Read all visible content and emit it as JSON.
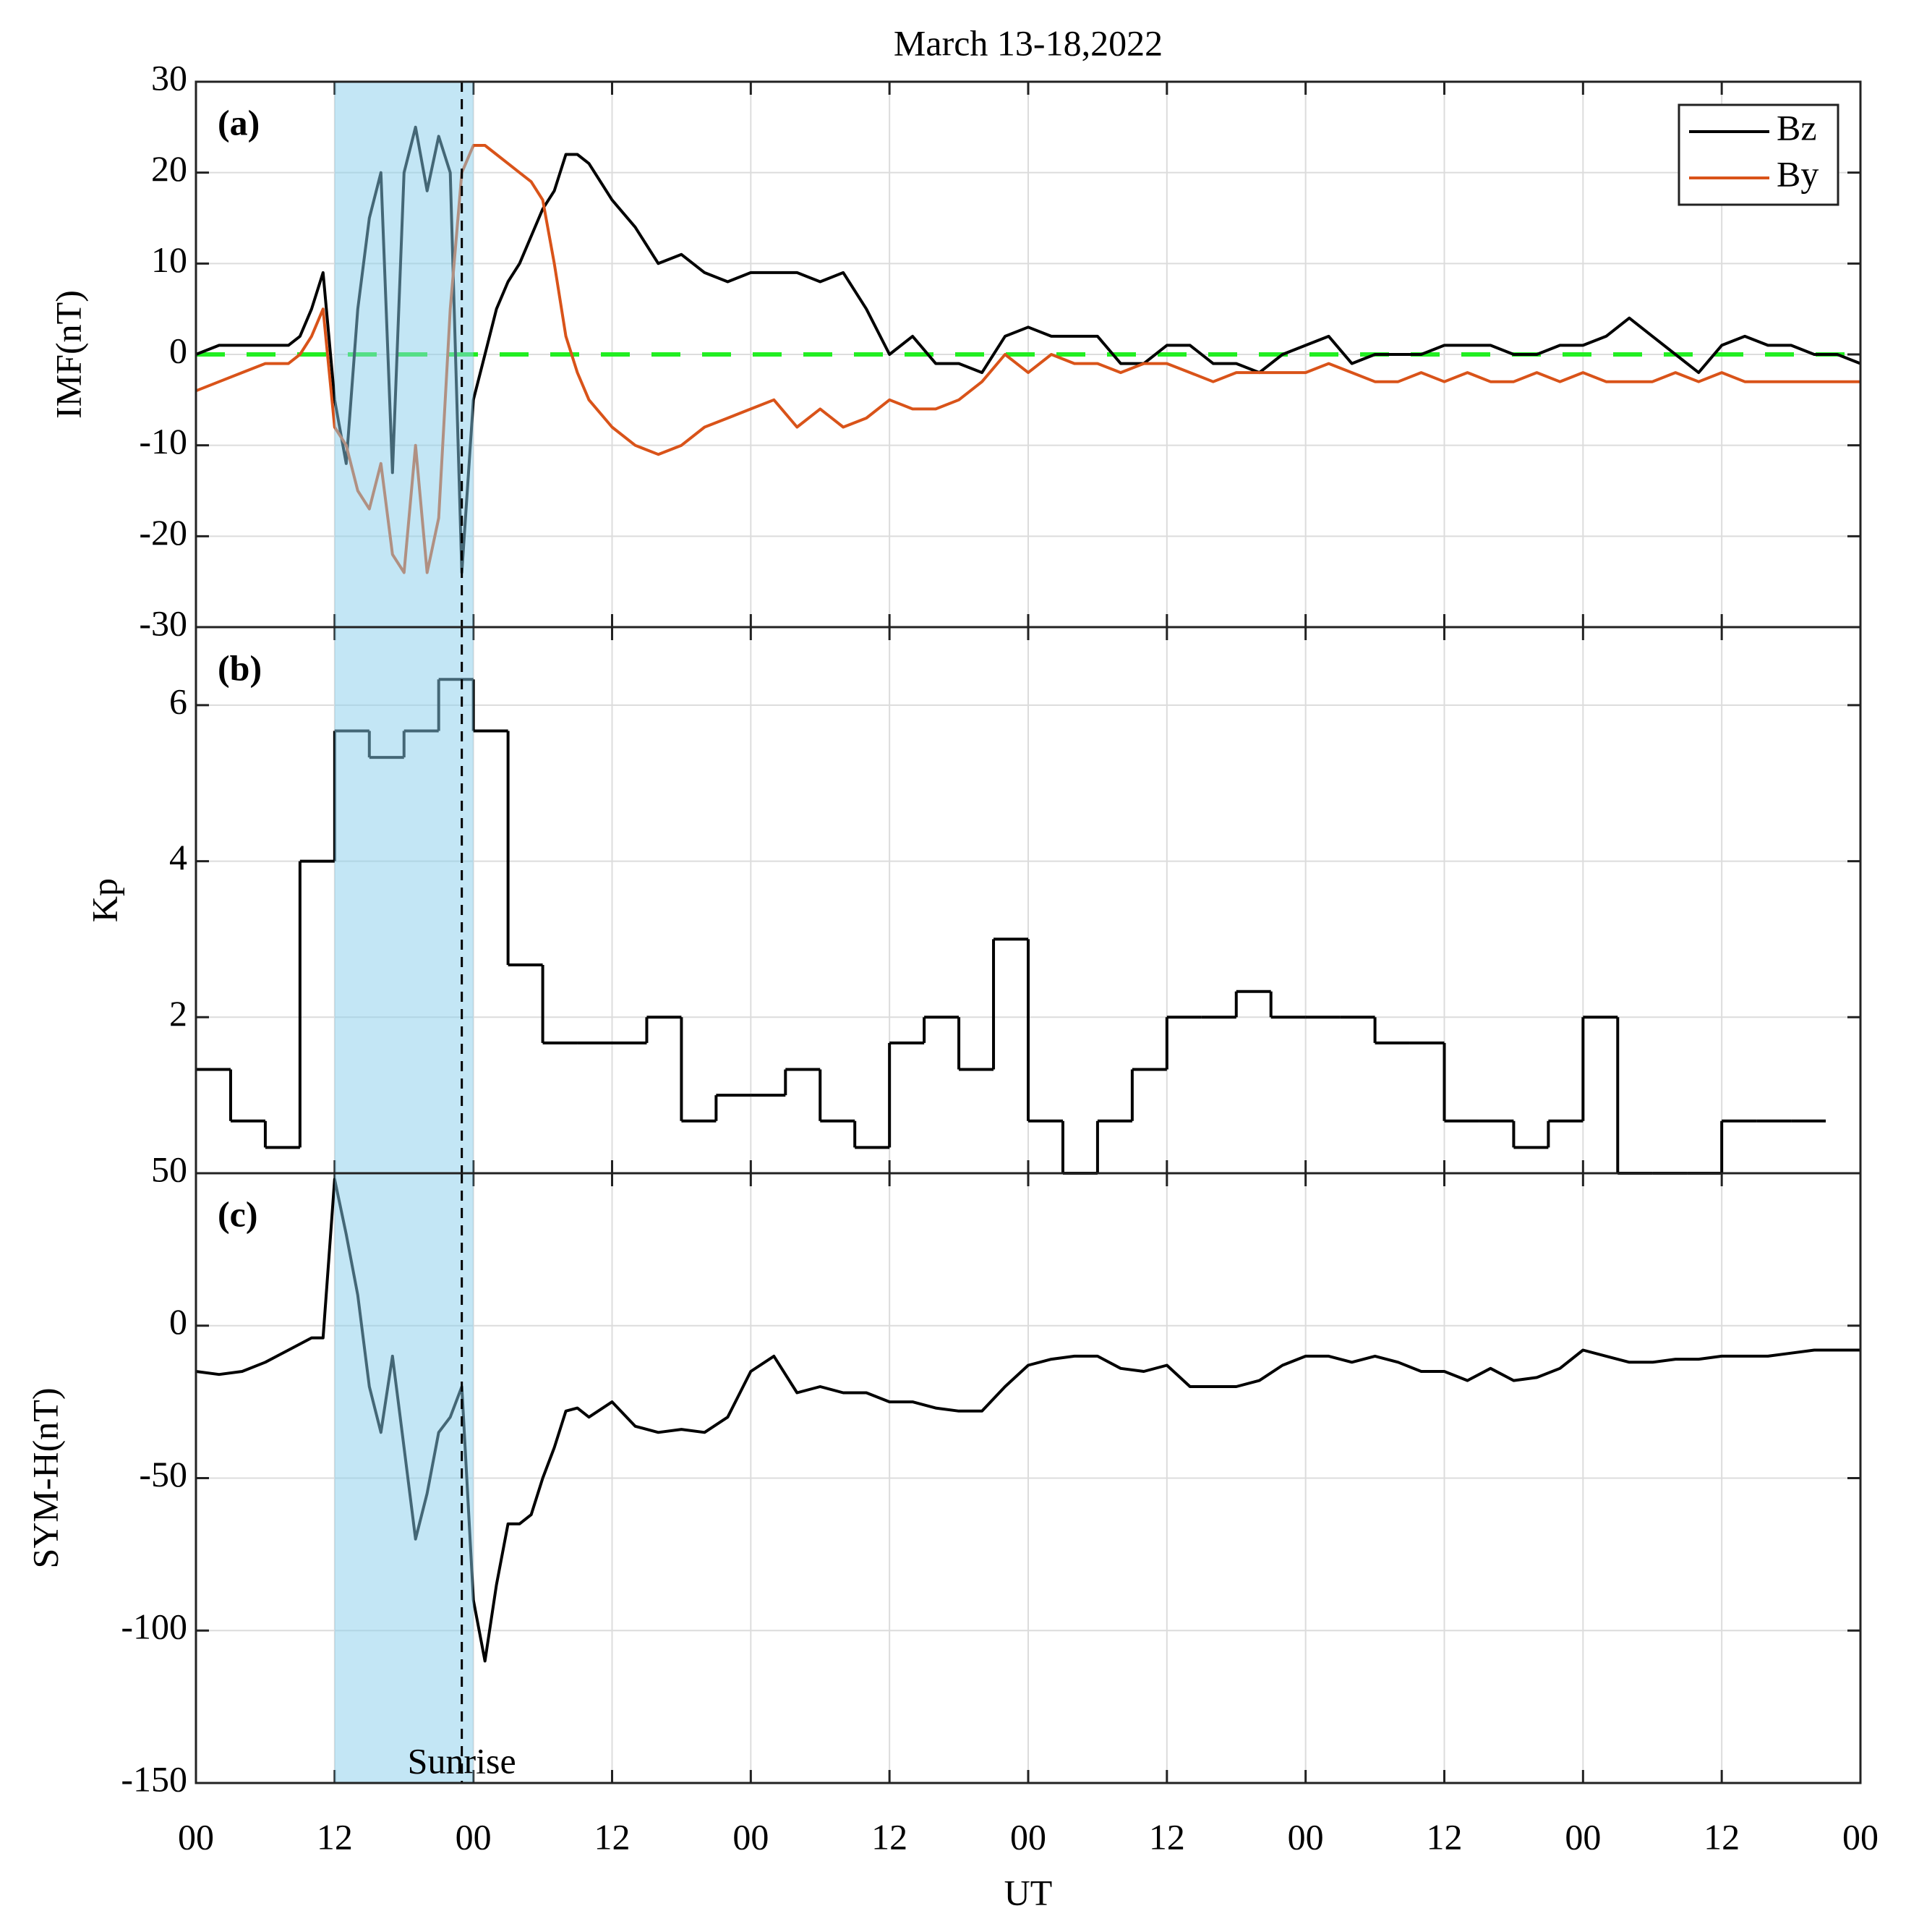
{
  "chart_data": [
    {
      "type": "line",
      "title": "March 13-18,2022",
      "label": "(a)",
      "ylabel": "IMF(nT)",
      "xlim": [
        0,
        144
      ],
      "xticks": [
        0,
        12,
        24,
        36,
        48,
        60,
        72,
        84,
        96,
        108,
        120,
        132,
        144
      ],
      "ylim": [
        -30,
        30
      ],
      "yticks": [
        -30,
        -20,
        -10,
        0,
        10,
        20,
        30
      ],
      "grid": true,
      "legend": "upper right",
      "hline": 0,
      "hline_color": "#22ee22",
      "shade": [
        12,
        24
      ],
      "shade_color": "#87ceeb",
      "vline": 23,
      "x": [
        0,
        2,
        4,
        6,
        8,
        9,
        10,
        11,
        12,
        13,
        14,
        15,
        16,
        17,
        18,
        19,
        20,
        21,
        22,
        23,
        24,
        25,
        26,
        27,
        28,
        29,
        30,
        31,
        32,
        33,
        34,
        36,
        38,
        40,
        42,
        44,
        46,
        48,
        50,
        52,
        54,
        56,
        58,
        60,
        62,
        64,
        66,
        68,
        70,
        72,
        74,
        76,
        78,
        80,
        82,
        84,
        86,
        88,
        90,
        92,
        94,
        96,
        98,
        100,
        102,
        104,
        106,
        108,
        110,
        112,
        114,
        116,
        118,
        120,
        122,
        124,
        126,
        128,
        130,
        132,
        134,
        136,
        138,
        140,
        142,
        144
      ],
      "series": [
        {
          "name": "Bz",
          "color": "#000000",
          "values": [
            0,
            1,
            1,
            1,
            1,
            2,
            5,
            9,
            -5,
            -12,
            5,
            15,
            20,
            -13,
            20,
            25,
            18,
            24,
            20,
            -24,
            -5,
            0,
            5,
            8,
            10,
            13,
            16,
            18,
            22,
            22,
            21,
            17,
            14,
            10,
            11,
            9,
            8,
            9,
            9,
            9,
            8,
            9,
            5,
            0,
            2,
            -1,
            -1,
            -2,
            2,
            3,
            2,
            2,
            2,
            -1,
            -1,
            1,
            1,
            -1,
            -1,
            -2,
            0,
            1,
            2,
            -1,
            0,
            0,
            0,
            1,
            1,
            1,
            0,
            0,
            1,
            1,
            2,
            4,
            2,
            0,
            -2,
            1,
            2,
            1,
            1,
            0,
            0,
            -1
          ]
        },
        {
          "name": "By",
          "color": "#d95319",
          "values": [
            -4,
            -3,
            -2,
            -1,
            -1,
            0,
            2,
            5,
            -8,
            -10,
            -15,
            -17,
            -12,
            -22,
            -24,
            -10,
            -24,
            -18,
            5,
            20,
            23,
            23,
            22,
            21,
            20,
            19,
            17,
            10,
            2,
            -2,
            -5,
            -8,
            -10,
            -11,
            -10,
            -8,
            -7,
            -6,
            -5,
            -8,
            -6,
            -8,
            -7,
            -5,
            -6,
            -6,
            -5,
            -3,
            0,
            -2,
            0,
            -1,
            -1,
            -2,
            -1,
            -1,
            -2,
            -3,
            -2,
            -2,
            -2,
            -2,
            -1,
            -2,
            -3,
            -3,
            -2,
            -3,
            -2,
            -3,
            -3,
            -2,
            -3,
            -2,
            -3,
            -3,
            -3,
            -2,
            -3,
            -2,
            -3,
            -3,
            -3,
            -3,
            -3,
            -3
          ]
        }
      ]
    },
    {
      "type": "step",
      "label": "(b)",
      "ylabel": "Kp",
      "color": "#000000",
      "xlim": [
        0,
        144
      ],
      "xticks": [
        0,
        12,
        24,
        36,
        48,
        60,
        72,
        84,
        96,
        108,
        120,
        132,
        144
      ],
      "ylim": [
        0,
        7
      ],
      "yticks": [
        2,
        4,
        6
      ],
      "grid": true,
      "shade": [
        12,
        24
      ],
      "shade_color": "#87ceeb",
      "vline": 23,
      "x": [
        0,
        3,
        6,
        9,
        12,
        15,
        18,
        21,
        24,
        27,
        30,
        33,
        36,
        39,
        42,
        45,
        48,
        51,
        54,
        57,
        60,
        63,
        66,
        69,
        72,
        75,
        78,
        81,
        84,
        87,
        90,
        93,
        96,
        99,
        102,
        105,
        108,
        111,
        114,
        117,
        120,
        123,
        126,
        129,
        132,
        135,
        138
      ],
      "values": [
        1.33,
        0.67,
        0.33,
        4,
        5.67,
        5.33,
        5.67,
        6.33,
        5.67,
        2.67,
        1.67,
        1.67,
        1.67,
        2,
        0.67,
        1,
        1,
        1.33,
        0.67,
        0.33,
        1.67,
        2,
        1.33,
        3,
        0.67,
        0,
        0.67,
        1.33,
        2,
        2,
        2.33,
        2,
        2,
        2,
        1.67,
        1.67,
        0.67,
        0.67,
        0.33,
        0.67,
        2,
        0,
        0,
        0,
        0.67,
        0.67,
        0.67
      ]
    },
    {
      "type": "line",
      "label": "(c)",
      "ylabel": "SYM-H(nT)",
      "xlabel": "UT",
      "annotation": "Sunrise",
      "xlim": [
        0,
        144
      ],
      "xticks": [
        {
          "value": 0,
          "label": "00"
        },
        {
          "value": 12,
          "label": "12"
        },
        {
          "value": 24,
          "label": "00"
        },
        {
          "value": 36,
          "label": "12"
        },
        {
          "value": 48,
          "label": "00"
        },
        {
          "value": 60,
          "label": "12"
        },
        {
          "value": 72,
          "label": "00"
        },
        {
          "value": 84,
          "label": "12"
        },
        {
          "value": 96,
          "label": "00"
        },
        {
          "value": 108,
          "label": "12"
        },
        {
          "value": 120,
          "label": "00"
        },
        {
          "value": 132,
          "label": "12"
        },
        {
          "value": 144,
          "label": "00"
        }
      ],
      "ylim": [
        -150,
        50
      ],
      "yticks": [
        -150,
        -100,
        -50,
        0,
        50
      ],
      "grid": true,
      "shade": [
        12,
        24
      ],
      "shade_color": "#87ceeb",
      "vline": 23,
      "x": [
        0,
        2,
        4,
        6,
        8,
        10,
        11,
        12,
        13,
        14,
        15,
        16,
        17,
        18,
        19,
        20,
        21,
        22,
        23,
        24,
        25,
        26,
        27,
        28,
        29,
        30,
        31,
        32,
        33,
        34,
        36,
        38,
        40,
        42,
        44,
        46,
        48,
        50,
        52,
        54,
        56,
        58,
        60,
        62,
        64,
        66,
        68,
        70,
        72,
        74,
        76,
        78,
        80,
        82,
        84,
        86,
        88,
        90,
        92,
        94,
        96,
        98,
        100,
        102,
        104,
        106,
        108,
        110,
        112,
        114,
        116,
        118,
        120,
        122,
        124,
        126,
        128,
        130,
        132,
        134,
        136,
        138,
        140,
        142,
        144
      ],
      "series": [
        {
          "name": "SYM-H",
          "color": "#000000",
          "values": [
            -15,
            -16,
            -15,
            -12,
            -8,
            -4,
            -4,
            48,
            30,
            10,
            -20,
            -35,
            -10,
            -40,
            -70,
            -55,
            -35,
            -30,
            -20,
            -90,
            -110,
            -85,
            -65,
            -65,
            -62,
            -50,
            -40,
            -28,
            -27,
            -30,
            -25,
            -33,
            -35,
            -34,
            -35,
            -30,
            -15,
            -10,
            -22,
            -20,
            -22,
            -22,
            -25,
            -25,
            -27,
            -28,
            -28,
            -20,
            -13,
            -11,
            -10,
            -10,
            -14,
            -15,
            -13,
            -20,
            -20,
            -20,
            -18,
            -13,
            -10,
            -10,
            -12,
            -10,
            -12,
            -15,
            -15,
            -18,
            -14,
            -18,
            -17,
            -14,
            -8,
            -10,
            -12,
            -12,
            -11,
            -11,
            -10,
            -10,
            -10,
            -9,
            -8,
            -8,
            -8
          ]
        }
      ]
    }
  ]
}
